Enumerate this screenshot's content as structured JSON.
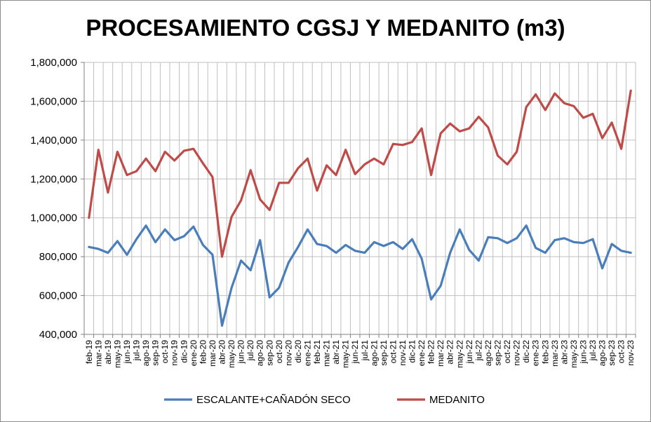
{
  "chart_data": {
    "type": "line",
    "title": "PROCESAMIENTO CGSJ Y MEDANITO (m3)",
    "ylim": [
      400000,
      1800000
    ],
    "yticks": [
      "400,000",
      "600,000",
      "800,000",
      "1,000,000",
      "1,200,000",
      "1,400,000",
      "1,600,000",
      "1,800,000"
    ],
    "ytick_values": [
      400000,
      600000,
      800000,
      1000000,
      1200000,
      1400000,
      1600000,
      1800000
    ],
    "grid": "vertical and horizontal",
    "legend_position": "bottom",
    "categories": [
      "feb-19",
      "mar-19",
      "abr-19",
      "may-19",
      "jun-19",
      "jul-19",
      "ago-19",
      "sep-19",
      "oct-19",
      "nov-19",
      "dic-19",
      "ene-20",
      "feb-20",
      "mar-20",
      "abr-20",
      "may-20",
      "jun-20",
      "jul-20",
      "ago-20",
      "sep-20",
      "oct-20",
      "nov-20",
      "dic-20",
      "ene-21",
      "feb-21",
      "mar-21",
      "abr-21",
      "may-21",
      "jun-21",
      "jul-21",
      "ago-21",
      "sep-21",
      "oct-21",
      "nov-21",
      "dic-21",
      "ene-22",
      "feb-22",
      "mar-22",
      "abr-22",
      "may-22",
      "jun-22",
      "jul-22",
      "ago-22",
      "sep-22",
      "oct-22",
      "nov-22",
      "dic-22",
      "ene-23",
      "feb-23",
      "mar-23",
      "abr-23",
      "may-23",
      "jun-23",
      "jul-23",
      "ago-23",
      "sep-23",
      "oct-23",
      "nov-23"
    ],
    "series": [
      {
        "name": "ESCALANTE+CAÑADÓN SECO",
        "color": "#4a7ebb",
        "values": [
          850000,
          840000,
          820000,
          880000,
          810000,
          890000,
          960000,
          875000,
          940000,
          885000,
          905000,
          955000,
          860000,
          810000,
          445000,
          640000,
          780000,
          730000,
          885000,
          590000,
          640000,
          770000,
          850000,
          940000,
          865000,
          855000,
          820000,
          860000,
          830000,
          820000,
          875000,
          855000,
          875000,
          840000,
          890000,
          790000,
          580000,
          650000,
          820000,
          940000,
          835000,
          780000,
          900000,
          895000,
          870000,
          895000,
          960000,
          845000,
          820000,
          885000,
          895000,
          875000,
          870000,
          890000,
          740000,
          865000,
          830000,
          820000
        ]
      },
      {
        "name": "MEDANITO",
        "color": "#be4b48",
        "values": [
          1000000,
          1350000,
          1130000,
          1340000,
          1220000,
          1240000,
          1305000,
          1240000,
          1340000,
          1295000,
          1345000,
          1355000,
          1280000,
          1210000,
          800000,
          1005000,
          1090000,
          1245000,
          1095000,
          1040000,
          1180000,
          1180000,
          1255000,
          1305000,
          1140000,
          1270000,
          1220000,
          1350000,
          1225000,
          1275000,
          1305000,
          1275000,
          1380000,
          1375000,
          1390000,
          1460000,
          1220000,
          1435000,
          1485000,
          1445000,
          1460000,
          1520000,
          1465000,
          1320000,
          1275000,
          1340000,
          1570000,
          1635000,
          1555000,
          1640000,
          1590000,
          1575000,
          1515000,
          1535000,
          1410000,
          1490000,
          1355000,
          1655000
        ]
      }
    ]
  }
}
